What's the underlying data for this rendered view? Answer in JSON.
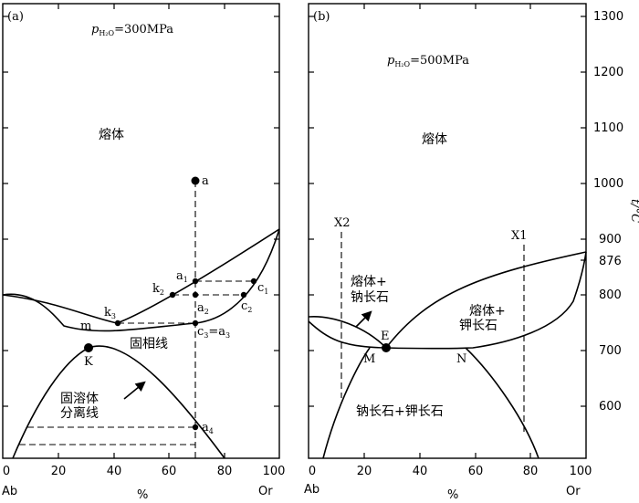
{
  "panel_a": {
    "tag": "(a)",
    "pressure": {
      "p": "p",
      "sub": "H₂O",
      "value": "=300MPa"
    },
    "melt": "熔体",
    "solidus": "固相线",
    "solvus": [
      "固溶体",
      "分离线"
    ],
    "points": {
      "a": "a",
      "a1": "a",
      "a1_sub": "1",
      "a2": "a",
      "a2_sub": "2",
      "k2": "k",
      "k2_sub": "2",
      "k3": "k",
      "k3_sub": "3",
      "c1": "c",
      "c1_sub": "1",
      "c2": "c",
      "c2_sub": "2",
      "c3a3": "c",
      "c3a3_sub1": "3",
      "c3a3_mid": "=a",
      "c3a3_sub2": "3",
      "a4": "a",
      "a4_sub": "4",
      "m": "m",
      "K": "K"
    },
    "x_ticks": [
      "0",
      "20",
      "40",
      "60",
      "80",
      "100"
    ],
    "x_left": "Ab",
    "x_right": "Or"
  },
  "panel_b": {
    "tag": "(b)",
    "pressure": {
      "p": "p",
      "sub": "H₂O",
      "value": "=500MPa"
    },
    "melt": "熔体",
    "field_ab": [
      "熔体+",
      "钠长石"
    ],
    "field_or": [
      "熔体+",
      "钾长石"
    ],
    "two_feldspar": "钠长石+钾长石",
    "points": {
      "E": "E",
      "M": "M",
      "N": "N",
      "X1": "X1",
      "X2": "X2"
    },
    "x_ticks": [
      "0",
      "20",
      "40",
      "60",
      "80",
      "100"
    ],
    "x_left": "Ab",
    "x_right": "Or",
    "y_ticks": [
      "1300",
      "1200",
      "1100",
      "1000",
      "900",
      "876",
      "800",
      "700",
      "600"
    ],
    "y_label": "t/°C"
  },
  "shared": {
    "x_unit": "%"
  }
}
